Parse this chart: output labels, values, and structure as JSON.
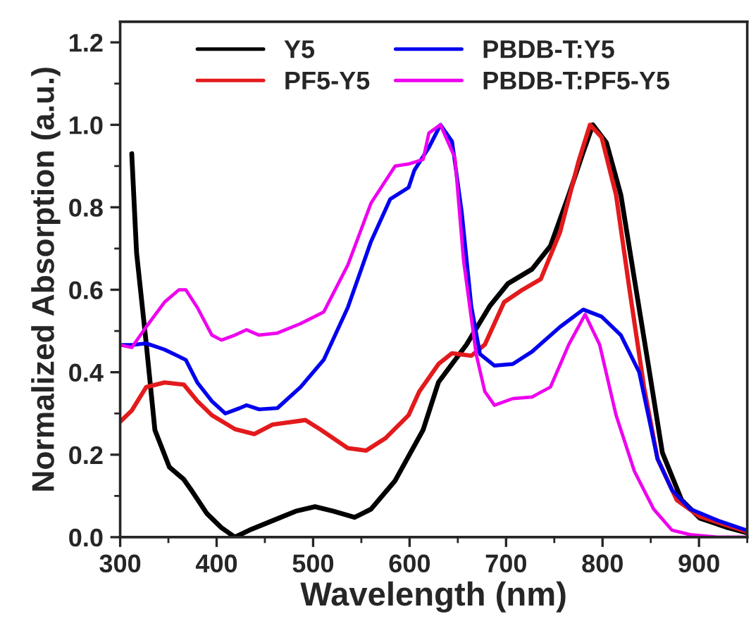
{
  "chart_data": {
    "type": "line",
    "xlabel": "Wavelength (nm)",
    "ylabel": "Normalized Absorption (a.u.)",
    "xlim": [
      300,
      950
    ],
    "ylim": [
      0,
      1.25
    ],
    "xticks": [
      300,
      400,
      500,
      600,
      700,
      800,
      900,
      {
        "value": 350,
        "label": null
      },
      {
        "value": 450,
        "label": null
      },
      {
        "value": 550,
        "label": null
      },
      {
        "value": 650,
        "label": null
      },
      {
        "value": 750,
        "label": null
      },
      {
        "value": 850,
        "label": null
      },
      {
        "value": 950,
        "label": null
      }
    ],
    "yticks": [
      {
        "value": 0,
        "label": "0.0"
      },
      {
        "value": 0.2,
        "label": "0.2"
      },
      {
        "value": 0.4,
        "label": "0.4"
      },
      {
        "value": 0.6,
        "label": "0.6"
      },
      {
        "value": 0.8,
        "label": "0.8"
      },
      {
        "value": 1.0,
        "label": "1.0"
      },
      {
        "value": 1.2,
        "label": "1.2"
      },
      {
        "value": 0.1,
        "label": null
      },
      {
        "value": 0.3,
        "label": null
      },
      {
        "value": 0.5,
        "label": null
      },
      {
        "value": 0.7,
        "label": null
      },
      {
        "value": 0.9,
        "label": null
      },
      {
        "value": 1.1,
        "label": null
      }
    ],
    "grid": false,
    "legend": "top",
    "line_style": "solid",
    "marker": "none",
    "series": [
      {
        "name": "Y5",
        "color": "#000000",
        "x": [
          312,
          317,
          327,
          336,
          351,
          366,
          375,
          390,
          405,
          419,
          434,
          458,
          482,
          502,
          521,
          543,
          560,
          585,
          614,
          630,
          659,
          683,
          702,
          727,
          746,
          765,
          780,
          790,
          804,
          819,
          833,
          848,
          862,
          882,
          901,
          930,
          949
        ],
        "values": [
          0.93,
          0.69,
          0.47,
          0.26,
          0.17,
          0.14,
          0.11,
          0.057,
          0.023,
          0.0,
          0.017,
          0.04,
          0.063,
          0.074,
          0.063,
          0.048,
          0.068,
          0.137,
          0.26,
          0.376,
          0.467,
          0.56,
          0.615,
          0.65,
          0.706,
          0.83,
          0.934,
          1.0,
          0.957,
          0.83,
          0.626,
          0.41,
          0.205,
          0.09,
          0.046,
          0.023,
          0.011
        ]
      },
      {
        "name": "PF5-Y5",
        "color": "#e31a1c",
        "x": [
          300,
          312,
          327,
          346,
          366,
          380,
          395,
          419,
          439,
          458,
          492,
          507,
          536,
          555,
          575,
          599,
          610,
          630,
          644,
          664,
          678,
          698,
          717,
          736,
          756,
          775,
          787,
          799,
          814,
          828,
          843,
          857,
          877,
          901,
          930,
          949
        ],
        "values": [
          0.28,
          0.307,
          0.364,
          0.375,
          0.37,
          0.33,
          0.296,
          0.262,
          0.25,
          0.273,
          0.284,
          0.262,
          0.216,
          0.21,
          0.24,
          0.296,
          0.353,
          0.42,
          0.446,
          0.44,
          0.467,
          0.57,
          0.6,
          0.626,
          0.74,
          0.91,
          1.0,
          0.97,
          0.83,
          0.6,
          0.364,
          0.19,
          0.09,
          0.05,
          0.028,
          0.014
        ]
      },
      {
        "name": "PBDB-T:Y5",
        "color": "#0000ee",
        "x": [
          300,
          312,
          327,
          346,
          361,
          368,
          380,
          395,
          409,
          424,
          431,
          444,
          463,
          487,
          511,
          536,
          560,
          580,
          599,
          605,
          620,
          632,
          644,
          654,
          664,
          673,
          688,
          707,
          727,
          756,
          780,
          799,
          819,
          838,
          857,
          872,
          891,
          920,
          949
        ],
        "values": [
          0.466,
          0.466,
          0.47,
          0.455,
          0.438,
          0.43,
          0.375,
          0.33,
          0.3,
          0.313,
          0.32,
          0.31,
          0.313,
          0.364,
          0.43,
          0.557,
          0.717,
          0.82,
          0.848,
          0.89,
          0.945,
          1.0,
          0.96,
          0.79,
          0.56,
          0.444,
          0.416,
          0.42,
          0.45,
          0.51,
          0.552,
          0.535,
          0.49,
          0.4,
          0.19,
          0.114,
          0.068,
          0.04,
          0.017
        ]
      },
      {
        "name": "PBDB-T:PF5-Y5",
        "color": "#ee00ee",
        "x": [
          300,
          312,
          327,
          346,
          361,
          368,
          380,
          395,
          405,
          419,
          431,
          444,
          463,
          487,
          511,
          536,
          560,
          585,
          599,
          614,
          620,
          632,
          647,
          656,
          669,
          678,
          688,
          707,
          727,
          746,
          765,
          782,
          797,
          814,
          833,
          853,
          872,
          891,
          920,
          949
        ],
        "values": [
          0.466,
          0.46,
          0.51,
          0.57,
          0.6,
          0.6,
          0.557,
          0.49,
          0.478,
          0.49,
          0.503,
          0.49,
          0.495,
          0.518,
          0.546,
          0.66,
          0.81,
          0.9,
          0.905,
          0.916,
          0.98,
          1.0,
          0.92,
          0.67,
          0.444,
          0.353,
          0.32,
          0.336,
          0.34,
          0.364,
          0.467,
          0.54,
          0.467,
          0.296,
          0.16,
          0.068,
          0.017,
          0.006,
          0.0,
          0.0
        ]
      }
    ]
  }
}
